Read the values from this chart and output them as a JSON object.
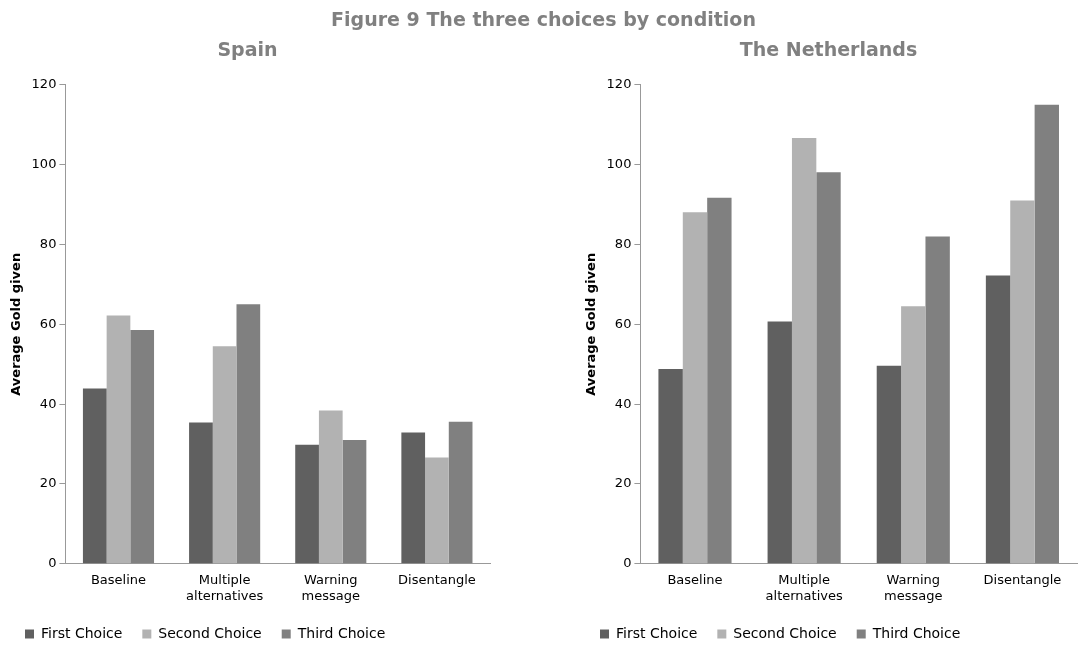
{
  "chart_data": [
    {
      "type": "bar",
      "title": "Figure 9 The three choices by condition",
      "subtitle": "Spain",
      "ylabel": "Average Gold given",
      "categories": [
        "Baseline",
        "Multiple alternatives",
        "Warning message",
        "Disentangle"
      ],
      "series": [
        {
          "name": "First Choice",
          "color": "#606060",
          "values": [
            43.9,
            35.4,
            29.8,
            32.9
          ]
        },
        {
          "name": "Second Choice",
          "color": "#b2b2b2",
          "values": [
            62.2,
            54.5,
            38.4,
            26.6
          ]
        },
        {
          "name": "Third Choice",
          "color": "#808080",
          "values": [
            58.6,
            65.0,
            31.0,
            35.6
          ]
        }
      ],
      "ylim": [
        0,
        120
      ],
      "yticks": [
        0,
        20,
        40,
        60,
        80,
        100,
        120
      ],
      "grid": false,
      "legend": "bottom"
    },
    {
      "type": "bar",
      "title": "The Netherlands",
      "ylabel": "Average Gold given",
      "categories": [
        "Baseline",
        "Multiple alternatives",
        "Warning message",
        "Disentangle"
      ],
      "series": [
        {
          "name": "First Choice",
          "color": "#606060",
          "values": [
            48.8,
            60.7,
            49.6,
            72.2
          ]
        },
        {
          "name": "Second Choice",
          "color": "#b2b2b2",
          "values": [
            88.1,
            106.7,
            64.5,
            91.0
          ]
        },
        {
          "name": "Third Choice",
          "color": "#808080",
          "values": [
            91.7,
            98.1,
            82.0,
            115.0
          ]
        }
      ],
      "ylim": [
        0,
        120
      ],
      "yticks": [
        0,
        20,
        40,
        60,
        80,
        100,
        120
      ],
      "grid": false,
      "legend": "bottom"
    }
  ]
}
